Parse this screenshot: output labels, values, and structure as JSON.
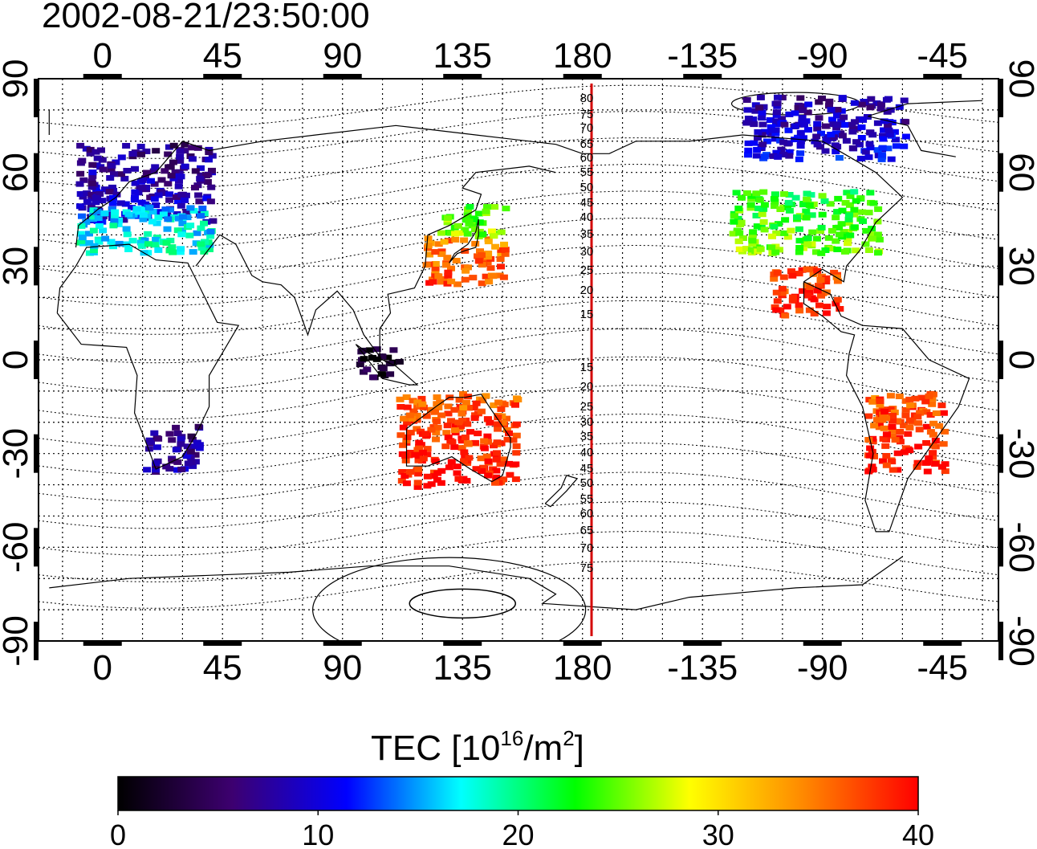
{
  "timestamp": "2002-08-21/23:50:00",
  "colorbar": {
    "title_main": "TEC  [10",
    "title_sup1": "16",
    "title_mid": "/m",
    "title_sup2": "2",
    "title_end": "]",
    "ticks": [
      "0",
      "10",
      "20",
      "30",
      "40"
    ],
    "range": [
      0,
      40
    ],
    "stops": [
      "#000000",
      "#3d0070",
      "#0000ff",
      "#00ffff",
      "#00ff00",
      "#ffff00",
      "#ff8800",
      "#ff0000"
    ]
  },
  "map": {
    "lon_ticks_top": [
      "0",
      "45",
      "90",
      "135",
      "180",
      "-135",
      "-90",
      "-45"
    ],
    "lon_ticks_bottom": [
      "0",
      "45",
      "90",
      "135",
      "180",
      "-135",
      "-90",
      "-45"
    ],
    "lat_ticks_left": [
      "90",
      "60",
      "30",
      "0",
      "-30",
      "-60",
      "-90"
    ],
    "lat_ticks_right": [
      "90",
      "60",
      "30",
      "0",
      "-30",
      "-60",
      "-90"
    ],
    "lon_range": [
      -24,
      336
    ],
    "lat_range": [
      -90,
      90
    ],
    "meridian_line_color": "#d40000",
    "meridian_labels": [
      "80",
      "75",
      "70",
      "65",
      "60",
      "55",
      "50",
      "45",
      "40",
      "35",
      "30",
      "25",
      "20",
      "15",
      "15",
      "20",
      "25",
      "30",
      "35",
      "40",
      "45",
      "50",
      "55",
      "60",
      "65",
      "70",
      "75"
    ]
  },
  "chart_data": {
    "type": "heatmap",
    "title": "2002-08-21/23:50:00",
    "quantity": "TEC [10^16/m^2]",
    "value_range": [
      0,
      40
    ],
    "regions": [
      {
        "lon_range": [
          -10,
          40
        ],
        "lat_range": [
          45,
          70
        ],
        "tec": 8
      },
      {
        "lon_range": [
          -10,
          40
        ],
        "lat_range": [
          35,
          50
        ],
        "tec": 17
      },
      {
        "lon_range": [
          120,
          150
        ],
        "lat_range": [
          25,
          40
        ],
        "tec": 36
      },
      {
        "lon_range": [
          125,
          150
        ],
        "lat_range": [
          40,
          50
        ],
        "tec": 25
      },
      {
        "lon_range": [
          -125,
          -70
        ],
        "lat_range": [
          35,
          55
        ],
        "tec": 24
      },
      {
        "lon_range": [
          -110,
          -85
        ],
        "lat_range": [
          15,
          30
        ],
        "tec": 38
      },
      {
        "lon_range": [
          110,
          155
        ],
        "lat_range": [
          -40,
          -10
        ],
        "tec": 38
      },
      {
        "lon_range": [
          -75,
          -45
        ],
        "lat_range": [
          -35,
          -10
        ],
        "tec": 38
      },
      {
        "lon_range": [
          15,
          35
        ],
        "lat_range": [
          -35,
          -20
        ],
        "tec": 7
      },
      {
        "lon_range": [
          95,
          110
        ],
        "lat_range": [
          -5,
          5
        ],
        "tec": 2
      },
      {
        "lon_range": [
          -120,
          -60
        ],
        "lat_range": [
          65,
          85
        ],
        "tec": 9
      }
    ]
  }
}
